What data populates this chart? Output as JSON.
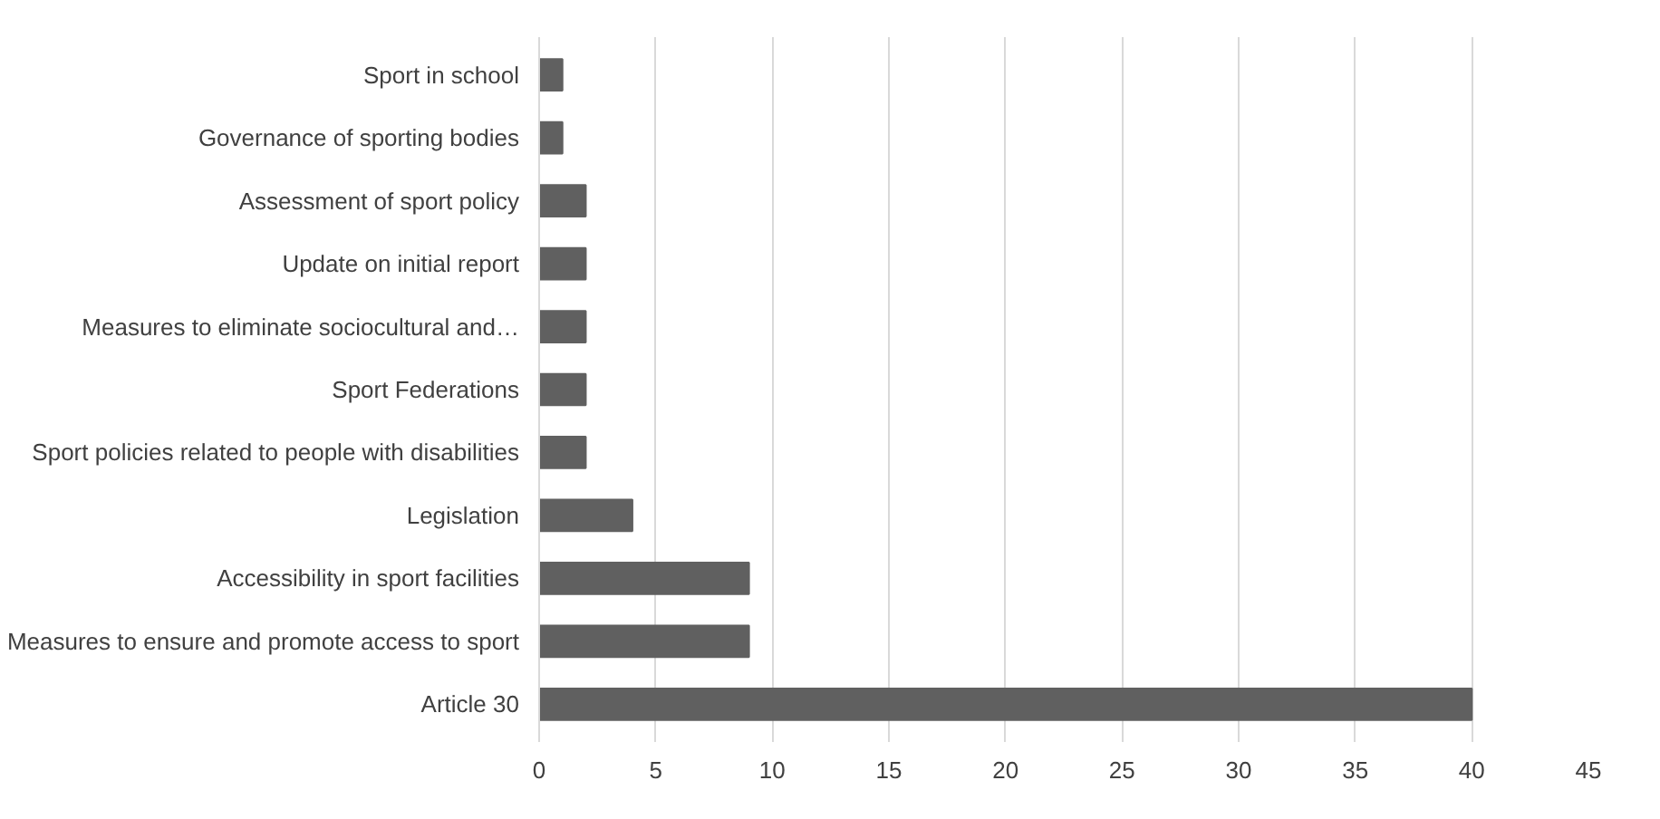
{
  "chart_data": {
    "type": "bar",
    "orientation": "horizontal",
    "categories": [
      "Sport in school",
      "Governance of sporting bodies",
      "Assessment of sport policy",
      "Update on initial report",
      "Measures to eliminate sociocultural and…",
      "Sport Federations",
      "Sport policies related to people with disabilities",
      "Legislation",
      "Accessibility in sport facilities",
      "Measures to ensure and promote access to sport",
      "Article 30"
    ],
    "values": [
      1,
      1,
      2,
      2,
      2,
      2,
      2,
      4,
      9,
      9,
      40
    ],
    "color": "#606060",
    "xlim": [
      0,
      45
    ],
    "xticks": [
      0,
      5,
      10,
      15,
      20,
      25,
      30,
      35,
      40,
      45
    ],
    "grid": "x"
  }
}
